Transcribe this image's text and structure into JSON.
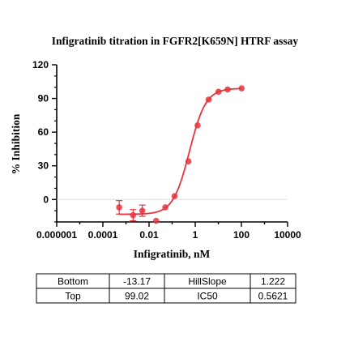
{
  "chart_data": {
    "type": "scatter",
    "title": "Infigratinib titration in FGFR2[K659N] HTRF assay",
    "xlabel": "Infigratinib, nM",
    "ylabel": "% Inhibition",
    "x_scale": "log",
    "xlim": [
      1e-06,
      10000
    ],
    "ylim": [
      -20,
      120
    ],
    "x_ticks": [
      "0.000001",
      "0.0001",
      "0.01",
      "1",
      "100",
      "10000"
    ],
    "y_ticks": [
      "0",
      "30",
      "60",
      "90",
      "120"
    ],
    "grid": false,
    "marker_color": "#e8333c",
    "series": [
      {
        "points": [
          {
            "x": 0.000508,
            "y": -7,
            "err": 6
          },
          {
            "x": 0.00203,
            "y": -14,
            "err": 5
          },
          {
            "x": 0.00508,
            "y": -10,
            "err": 5
          },
          {
            "x": 0.0203,
            "y": -19,
            "err": 0
          },
          {
            "x": 0.0508,
            "y": -7,
            "err": 0
          },
          {
            "x": 0.127,
            "y": 3,
            "err": 0
          },
          {
            "x": 0.508,
            "y": 34,
            "err": 0
          },
          {
            "x": 1.27,
            "y": 66,
            "err": 0
          },
          {
            "x": 3.81,
            "y": 89,
            "err": 0
          },
          {
            "x": 10.2,
            "y": 96,
            "err": 0
          },
          {
            "x": 25.4,
            "y": 98,
            "err": 0
          },
          {
            "x": 102,
            "y": 99,
            "err": 0
          }
        ]
      }
    ],
    "fit": {
      "model": "four-parameter logistic",
      "bottom": -13.17,
      "top": 99.02,
      "hillslope": 1.222,
      "ic50": 0.5621,
      "x_range": [
        0.000508,
        102
      ]
    },
    "table": [
      [
        "Bottom",
        "-13.17",
        "HillSlope",
        "1.222"
      ],
      [
        "Top",
        "99.02",
        "IC50",
        "0.5621"
      ]
    ]
  }
}
